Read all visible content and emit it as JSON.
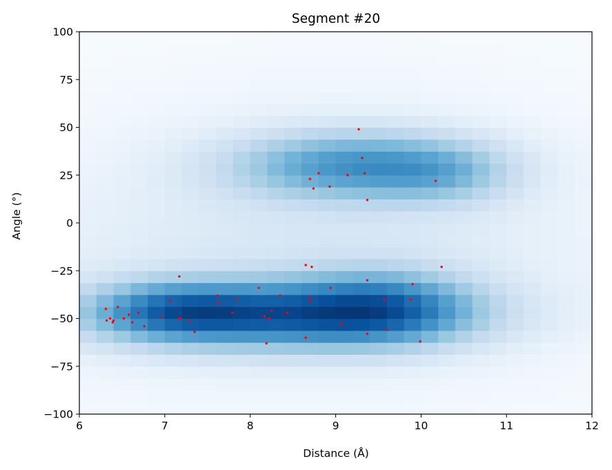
{
  "chart_data": {
    "type": "heatmap",
    "title": "Segment #20",
    "xlabel": "Distance (Å)",
    "ylabel": "Angle (°)",
    "xlim": [
      6,
      12
    ],
    "ylim": [
      -100,
      100
    ],
    "xticks": [
      6,
      7,
      8,
      9,
      10,
      11,
      12
    ],
    "yticks": [
      -100,
      -75,
      -50,
      -25,
      0,
      25,
      50,
      75,
      100
    ],
    "xtick_labels": [
      "6",
      "7",
      "8",
      "9",
      "10",
      "11",
      "12"
    ],
    "ytick_labels": [
      "−100",
      "−75",
      "−50",
      "−25",
      "0",
      "25",
      "50",
      "75",
      "100"
    ],
    "colormap": "Blues",
    "grid": false,
    "density_components": [
      {
        "center": [
          8.35,
          -48
        ],
        "sigma": [
          1.35,
          12
        ],
        "weight": 1.0
      },
      {
        "center": [
          7.1,
          -46
        ],
        "sigma": [
          0.65,
          10
        ],
        "weight": 0.55
      },
      {
        "center": [
          9.6,
          -44
        ],
        "sigma": [
          0.7,
          13
        ],
        "weight": 0.6
      },
      {
        "center": [
          9.2,
          30
        ],
        "sigma": [
          0.95,
          12
        ],
        "weight": 0.72
      },
      {
        "center": [
          10.3,
          26
        ],
        "sigma": [
          0.55,
          11
        ],
        "weight": 0.3
      },
      {
        "center": [
          9.0,
          5
        ],
        "sigma": [
          1.9,
          42
        ],
        "weight": 0.1
      },
      {
        "center": [
          8.0,
          -30
        ],
        "sigma": [
          2.8,
          40
        ],
        "weight": 0.08
      }
    ],
    "points": {
      "color": "#ff0000",
      "series": [
        {
          "x": [
            6.31,
            6.32,
            6.36,
            6.39,
            6.4,
            6.45,
            6.52,
            6.58,
            6.62,
            6.69,
            6.76,
            6.96,
            7.07,
            7.17,
            7.17,
            7.18,
            7.29,
            7.35,
            7.62,
            7.63,
            7.79,
            7.84,
            8.1,
            8.17,
            8.19,
            8.22,
            8.25,
            8.35,
            8.43,
            8.65,
            8.65,
            8.7,
            8.7,
            8.72,
            8.94,
            9.07,
            9.37,
            9.37,
            9.57,
            9.6,
            9.88,
            9.9,
            9.99,
            10.24,
            8.7,
            8.74,
            8.8,
            8.93,
            9.14,
            9.27,
            9.31,
            9.34,
            9.37,
            10.17
          ],
          "y": [
            -45,
            -51,
            -50,
            -52,
            -51,
            -44,
            -50,
            -48,
            -52,
            -47,
            -54,
            -49,
            -41,
            -28,
            -50,
            -50,
            -51,
            -57,
            -38,
            -42,
            -47,
            -40,
            -34,
            -49,
            -63,
            -50,
            -46,
            -38,
            -47,
            -22,
            -60,
            -39,
            -41,
            -23,
            -34,
            -53,
            -58,
            -30,
            -40,
            -56,
            -40,
            -32,
            -62,
            -23,
            23,
            18,
            26,
            19,
            25,
            49,
            34,
            26,
            12,
            22
          ]
        }
      ]
    }
  }
}
